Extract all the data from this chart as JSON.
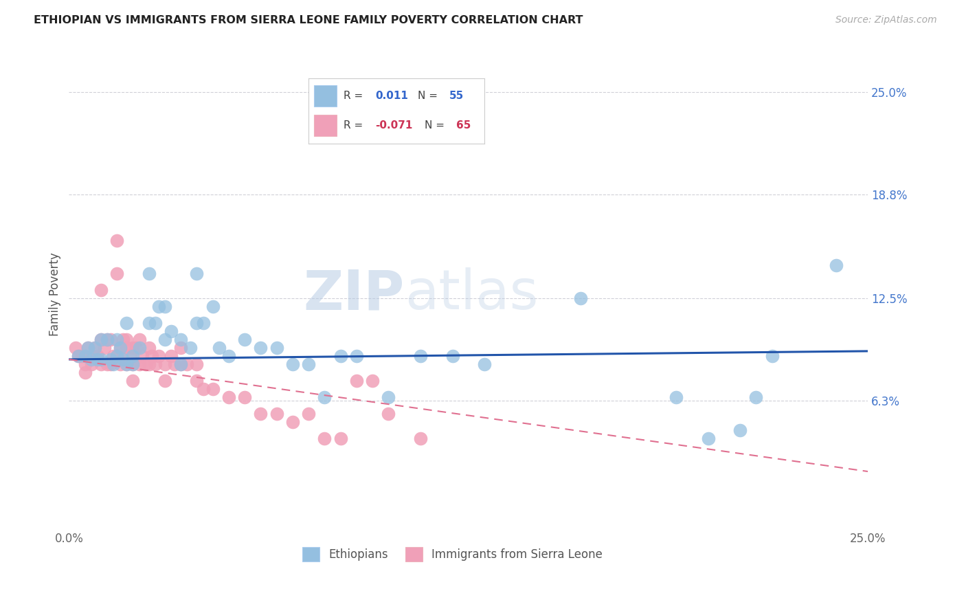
{
  "title": "ETHIOPIAN VS IMMIGRANTS FROM SIERRA LEONE FAMILY POVERTY CORRELATION CHART",
  "source": "Source: ZipAtlas.com",
  "ylabel": "Family Poverty",
  "xlim": [
    0.0,
    0.25
  ],
  "ylim": [
    -0.015,
    0.27
  ],
  "ytick_labels": [
    "25.0%",
    "18.8%",
    "12.5%",
    "6.3%"
  ],
  "ytick_positions": [
    0.25,
    0.188,
    0.125,
    0.063
  ],
  "xtick_positions": [
    0.0,
    0.25
  ],
  "xtick_labels": [
    "0.0%",
    "25.0%"
  ],
  "grid_color": "#d0d0d8",
  "background_color": "#ffffff",
  "blue_color": "#94bfe0",
  "pink_color": "#f0a0b8",
  "trendline_blue_color": "#2255aa",
  "trendline_pink_color": "#e07090",
  "legend_R_blue": "0.011",
  "legend_N_blue": "55",
  "legend_R_pink": "-0.071",
  "legend_N_pink": "65",
  "ethiopians_x": [
    0.003,
    0.005,
    0.006,
    0.007,
    0.008,
    0.009,
    0.01,
    0.01,
    0.012,
    0.013,
    0.014,
    0.015,
    0.015,
    0.016,
    0.017,
    0.018,
    0.018,
    0.02,
    0.02,
    0.022,
    0.025,
    0.025,
    0.027,
    0.028,
    0.03,
    0.03,
    0.032,
    0.035,
    0.035,
    0.038,
    0.04,
    0.04,
    0.042,
    0.045,
    0.047,
    0.05,
    0.055,
    0.06,
    0.065,
    0.07,
    0.075,
    0.08,
    0.085,
    0.09,
    0.1,
    0.11,
    0.12,
    0.13,
    0.16,
    0.19,
    0.2,
    0.21,
    0.215,
    0.22,
    0.24
  ],
  "ethiopians_y": [
    0.09,
    0.09,
    0.095,
    0.088,
    0.095,
    0.088,
    0.1,
    0.088,
    0.1,
    0.088,
    0.085,
    0.1,
    0.09,
    0.095,
    0.088,
    0.11,
    0.085,
    0.09,
    0.085,
    0.095,
    0.14,
    0.11,
    0.11,
    0.12,
    0.12,
    0.1,
    0.105,
    0.1,
    0.085,
    0.095,
    0.14,
    0.11,
    0.11,
    0.12,
    0.095,
    0.09,
    0.1,
    0.095,
    0.095,
    0.085,
    0.085,
    0.065,
    0.09,
    0.09,
    0.065,
    0.09,
    0.09,
    0.085,
    0.125,
    0.065,
    0.04,
    0.045,
    0.065,
    0.09,
    0.145
  ],
  "sierraleone_x": [
    0.002,
    0.003,
    0.004,
    0.005,
    0.005,
    0.006,
    0.007,
    0.007,
    0.008,
    0.009,
    0.01,
    0.01,
    0.01,
    0.011,
    0.012,
    0.012,
    0.013,
    0.013,
    0.014,
    0.015,
    0.015,
    0.015,
    0.016,
    0.016,
    0.017,
    0.018,
    0.018,
    0.018,
    0.019,
    0.02,
    0.02,
    0.02,
    0.021,
    0.022,
    0.022,
    0.023,
    0.024,
    0.025,
    0.025,
    0.026,
    0.027,
    0.028,
    0.03,
    0.03,
    0.032,
    0.033,
    0.035,
    0.035,
    0.037,
    0.04,
    0.04,
    0.042,
    0.045,
    0.05,
    0.055,
    0.06,
    0.065,
    0.07,
    0.075,
    0.08,
    0.085,
    0.09,
    0.095,
    0.1,
    0.11
  ],
  "sierraleone_y": [
    0.095,
    0.09,
    0.09,
    0.085,
    0.08,
    0.095,
    0.09,
    0.085,
    0.095,
    0.09,
    0.13,
    0.1,
    0.085,
    0.095,
    0.1,
    0.085,
    0.1,
    0.085,
    0.09,
    0.16,
    0.14,
    0.09,
    0.095,
    0.085,
    0.1,
    0.1,
    0.095,
    0.085,
    0.09,
    0.095,
    0.085,
    0.075,
    0.095,
    0.1,
    0.085,
    0.09,
    0.085,
    0.095,
    0.085,
    0.09,
    0.085,
    0.09,
    0.085,
    0.075,
    0.09,
    0.085,
    0.095,
    0.085,
    0.085,
    0.085,
    0.075,
    0.07,
    0.07,
    0.065,
    0.065,
    0.055,
    0.055,
    0.05,
    0.055,
    0.04,
    0.04,
    0.075,
    0.075,
    0.055,
    0.04
  ],
  "trendline_blue_x0": 0.0,
  "trendline_blue_x1": 0.25,
  "trendline_blue_y0": 0.088,
  "trendline_blue_y1": 0.093,
  "trendline_pink_x0": 0.0,
  "trendline_pink_x1": 0.25,
  "trendline_pink_y0": 0.088,
  "trendline_pink_y1": 0.02
}
